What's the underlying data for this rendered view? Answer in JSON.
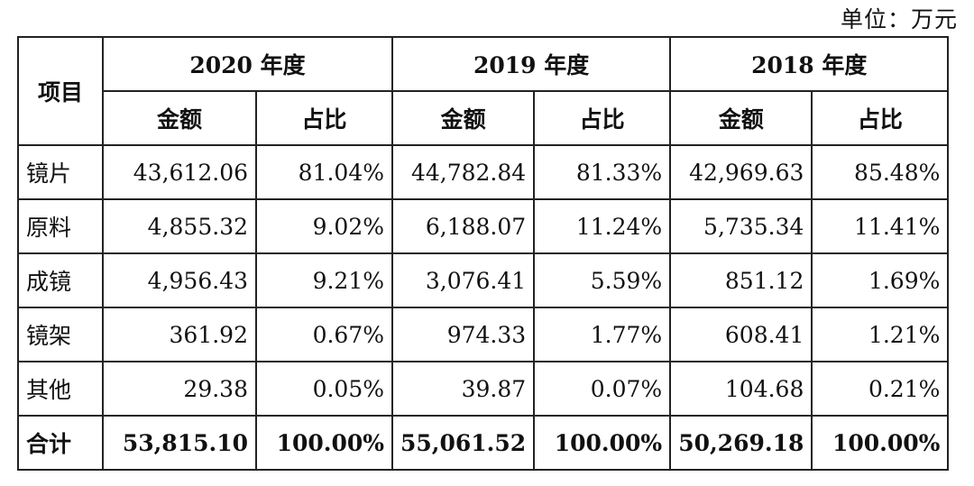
{
  "unit_label": "单位：万元",
  "header": {
    "item": "项目",
    "years": [
      "2020 年度",
      "2019 年度",
      "2018 年度"
    ],
    "sub": [
      "金额",
      "占比",
      "金额",
      "占比",
      "金额",
      "占比"
    ]
  },
  "rows": [
    {
      "label": "镜片",
      "cells": [
        "43,612.06",
        "81.04%",
        "44,782.84",
        "81.33%",
        "42,969.63",
        "85.48%"
      ]
    },
    {
      "label": "原料",
      "cells": [
        "4,855.32",
        "9.02%",
        "6,188.07",
        "11.24%",
        "5,735.34",
        "11.41%"
      ]
    },
    {
      "label": "成镜",
      "cells": [
        "4,956.43",
        "9.21%",
        "3,076.41",
        "5.59%",
        "851.12",
        "1.69%"
      ]
    },
    {
      "label": "镜架",
      "cells": [
        "361.92",
        "0.67%",
        "974.33",
        "1.77%",
        "608.41",
        "1.21%"
      ]
    },
    {
      "label": "其他",
      "cells": [
        "29.38",
        "0.05%",
        "39.87",
        "0.07%",
        "104.68",
        "0.21%"
      ]
    },
    {
      "label": "合计",
      "cells": [
        "53,815.10",
        "100.00%",
        "55,061.52",
        "100.00%",
        "50,269.18",
        "100.00%"
      ]
    }
  ]
}
